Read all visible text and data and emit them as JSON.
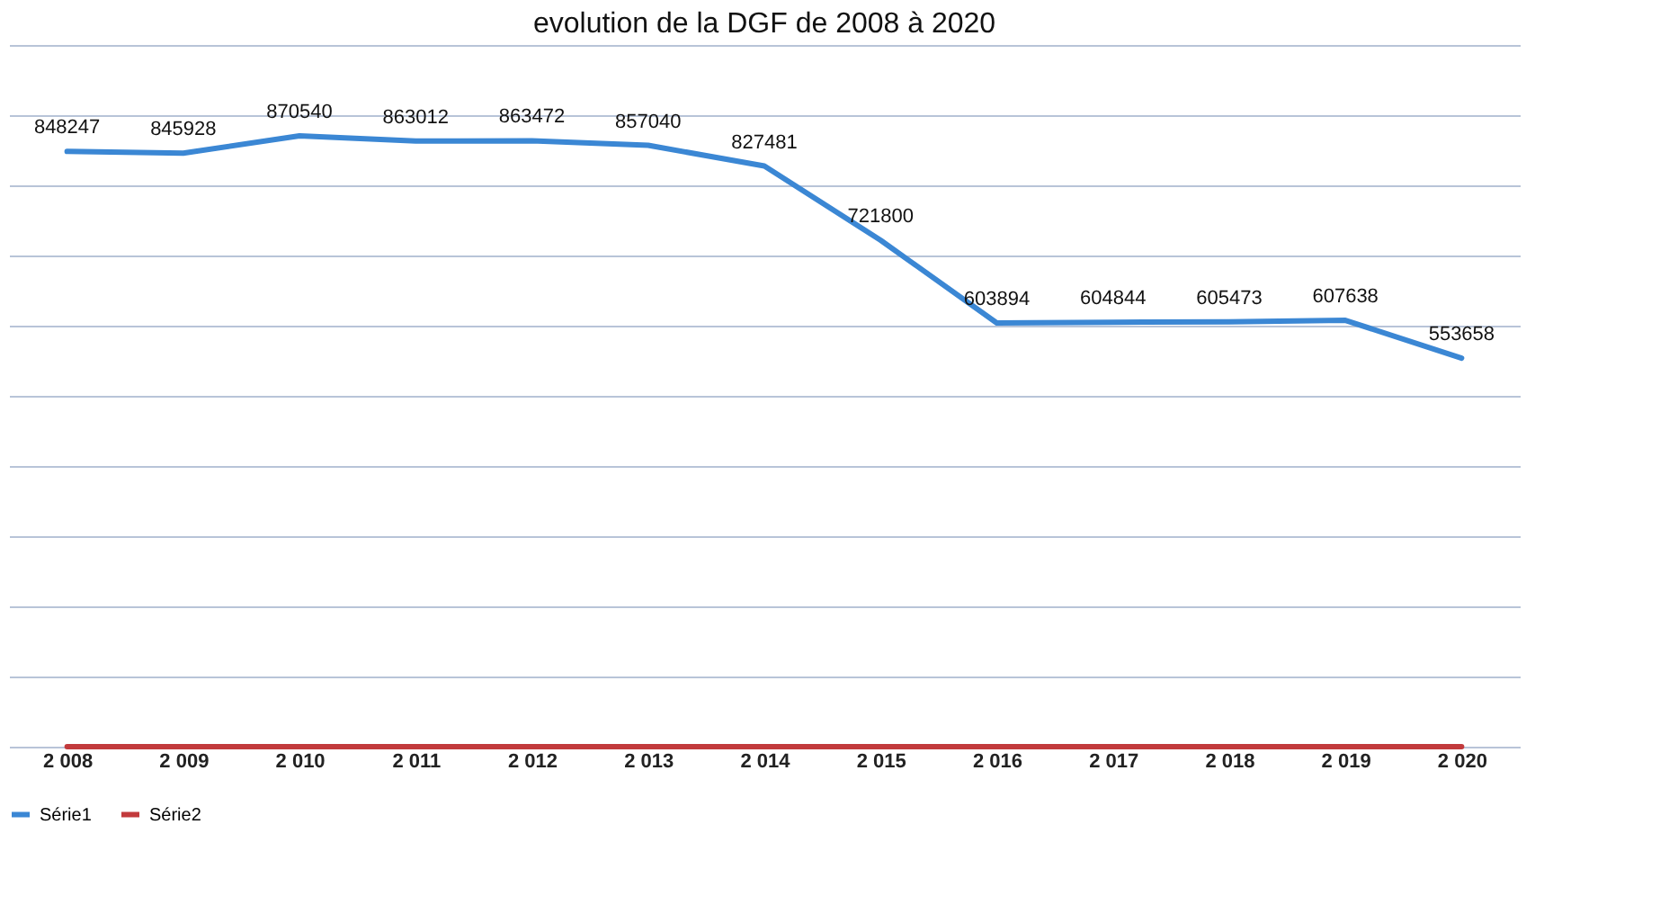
{
  "chart_data": {
    "type": "line",
    "title": "evolution de la DGF de 2008 à 2020",
    "categories": [
      "2 008",
      "2 009",
      "2 010",
      "2 011",
      "2 012",
      "2 013",
      "2 014",
      "2 015",
      "2 016",
      "2 017",
      "2 018",
      "2 019",
      "2 020"
    ],
    "series": [
      {
        "name": "Série1",
        "color": "#3b87d4",
        "values": [
          848247,
          845928,
          870540,
          863012,
          863472,
          857040,
          827481,
          721800,
          603894,
          604844,
          605473,
          607638,
          553658
        ],
        "value_labels": [
          "848247",
          "845928",
          "870540",
          "863012",
          "863472",
          "857040",
          "827481",
          "721800",
          "603894",
          "604844",
          "605473",
          "607638",
          "553658"
        ]
      },
      {
        "name": "Série2",
        "color": "#c23a3c",
        "values": [
          0,
          0,
          0,
          0,
          0,
          0,
          0,
          0,
          0,
          0,
          0,
          0,
          0
        ]
      }
    ],
    "ylim": [
      0,
      1000000
    ],
    "yticks": [
      {
        "value": 0,
        "label": null
      },
      {
        "value": 100000,
        "label": null
      },
      {
        "value": 200000,
        "label": null
      },
      {
        "value": 300000,
        "label": null
      },
      {
        "value": 400000,
        "label": null
      },
      {
        "value": 500000,
        "label": null
      },
      {
        "value": 600000,
        "label": null
      },
      {
        "value": 700000,
        "label": null
      },
      {
        "value": 800000,
        "label": null
      },
      {
        "value": 900000,
        "label": null
      },
      {
        "value": 1000000,
        "label": null
      }
    ],
    "grid": "y",
    "legend": "bottom",
    "tick_labels": "x",
    "line_style": "solid",
    "marker": "none"
  }
}
